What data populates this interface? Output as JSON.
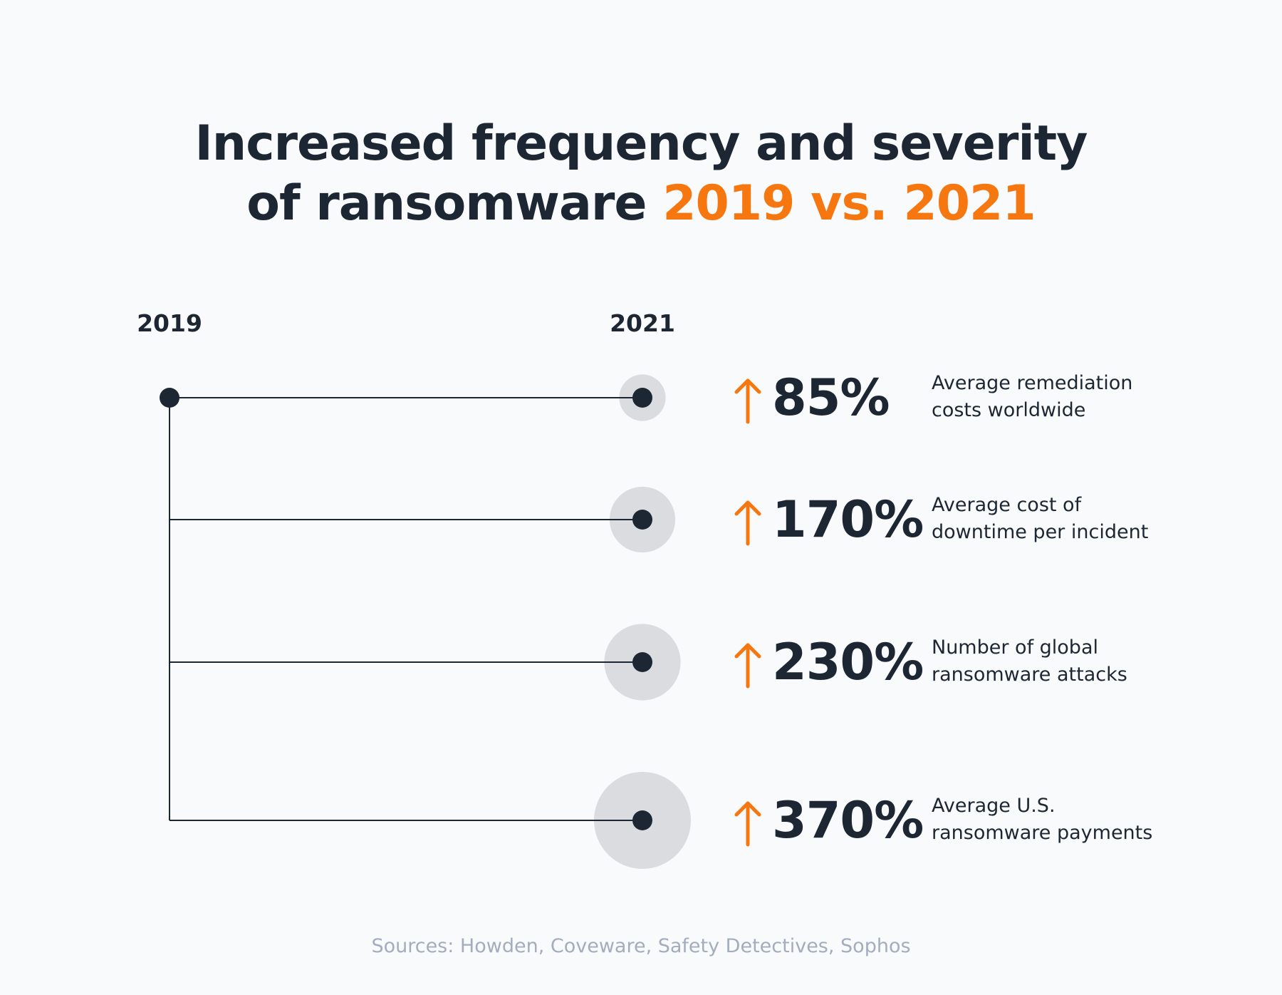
{
  "title": {
    "line1": "Increased frequency and severity",
    "line2_plain": "of ransomware ",
    "line2_accent": "2019 vs. 2021"
  },
  "chart_data": {
    "type": "bubble-timeline",
    "start_label": "2019",
    "end_label": "2021",
    "unit": "%",
    "items": [
      {
        "value": 85,
        "display": "85%",
        "desc_line1": "Average remediation",
        "desc_line2": "costs worldwide"
      },
      {
        "value": 170,
        "display": "170%",
        "desc_line1": "Average cost of",
        "desc_line2": "downtime per incident"
      },
      {
        "value": 230,
        "display": "230%",
        "desc_line1": "Number of global",
        "desc_line2": "ransomware attacks"
      },
      {
        "value": 370,
        "display": "370%",
        "desc_line1": "Average U.S.",
        "desc_line2": "ransomware payments"
      }
    ]
  },
  "sources": "Sources: Howden, Coveware, Safety Detectives, Sophos",
  "colors": {
    "ink": "#1d2733",
    "accent": "#f6770f",
    "bubble": "#dadce0",
    "muted": "#a3adbd",
    "background": "#f9fafc"
  }
}
